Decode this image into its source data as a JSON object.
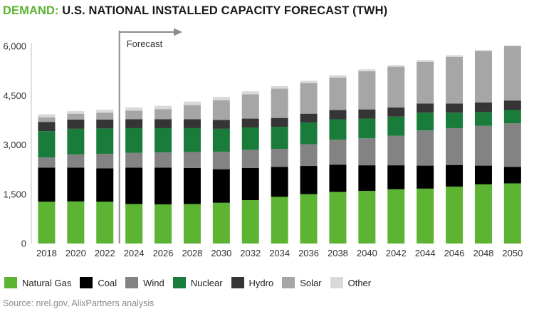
{
  "title": {
    "accent": "DEMAND:",
    "rest": "U.S. NATIONAL INSTALLED CAPACITY FORECAST (TWH)"
  },
  "source": "Source: nrel.gov, AlixPartners analysis",
  "chart_data": {
    "type": "bar",
    "stacked": true,
    "title": "DEMAND: U.S. NATIONAL INSTALLED CAPACITY FORECAST (TWH)",
    "xlabel": "",
    "ylabel": "",
    "ylim": [
      0,
      6000
    ],
    "yticks": [
      0,
      1500,
      3000,
      4500,
      6000
    ],
    "ytick_labels": [
      "0",
      "1,500",
      "3,000",
      "4,500",
      "6,000"
    ],
    "forecast_label": "Forecast",
    "forecast_start_after": "2022",
    "categories": [
      "2018",
      "2020",
      "2022",
      "2024",
      "2026",
      "2028",
      "2030",
      "2032",
      "2034",
      "2036",
      "2038",
      "2040",
      "2042",
      "2044",
      "2046",
      "2048",
      "2050"
    ],
    "series": [
      {
        "name": "Natural Gas",
        "color": "#5cb432",
        "values": [
          1270,
          1280,
          1270,
          1200,
          1190,
          1200,
          1240,
          1320,
          1420,
          1500,
          1570,
          1600,
          1650,
          1670,
          1730,
          1800,
          1830
        ]
      },
      {
        "name": "Coal",
        "color": "#000000",
        "values": [
          1040,
          1030,
          1020,
          1110,
          1120,
          1100,
          1020,
          980,
          910,
          860,
          830,
          780,
          730,
          700,
          660,
          570,
          500
        ]
      },
      {
        "name": "Wind",
        "color": "#838383",
        "values": [
          310,
          400,
          440,
          450,
          460,
          480,
          530,
          550,
          550,
          660,
          760,
          820,
          900,
          1070,
          1120,
          1210,
          1330
        ]
      },
      {
        "name": "Nuclear",
        "color": "#1a7c3a",
        "values": [
          800,
          780,
          770,
          750,
          740,
          730,
          700,
          680,
          670,
          660,
          620,
          600,
          580,
          540,
          470,
          420,
          400
        ]
      },
      {
        "name": "Hydro",
        "color": "#353535",
        "values": [
          280,
          280,
          270,
          270,
          270,
          270,
          270,
          270,
          270,
          270,
          280,
          280,
          280,
          280,
          280,
          290,
          290
        ]
      },
      {
        "name": "Solar",
        "color": "#a6a6a6",
        "values": [
          140,
          180,
          210,
          260,
          310,
          430,
          600,
          740,
          890,
          930,
          990,
          1160,
          1240,
          1270,
          1420,
          1560,
          1650
        ]
      },
      {
        "name": "Other",
        "color": "#d9d9d9",
        "values": [
          90,
          80,
          90,
          100,
          100,
          110,
          100,
          90,
          80,
          70,
          70,
          60,
          50,
          50,
          50,
          40,
          30
        ]
      }
    ]
  }
}
